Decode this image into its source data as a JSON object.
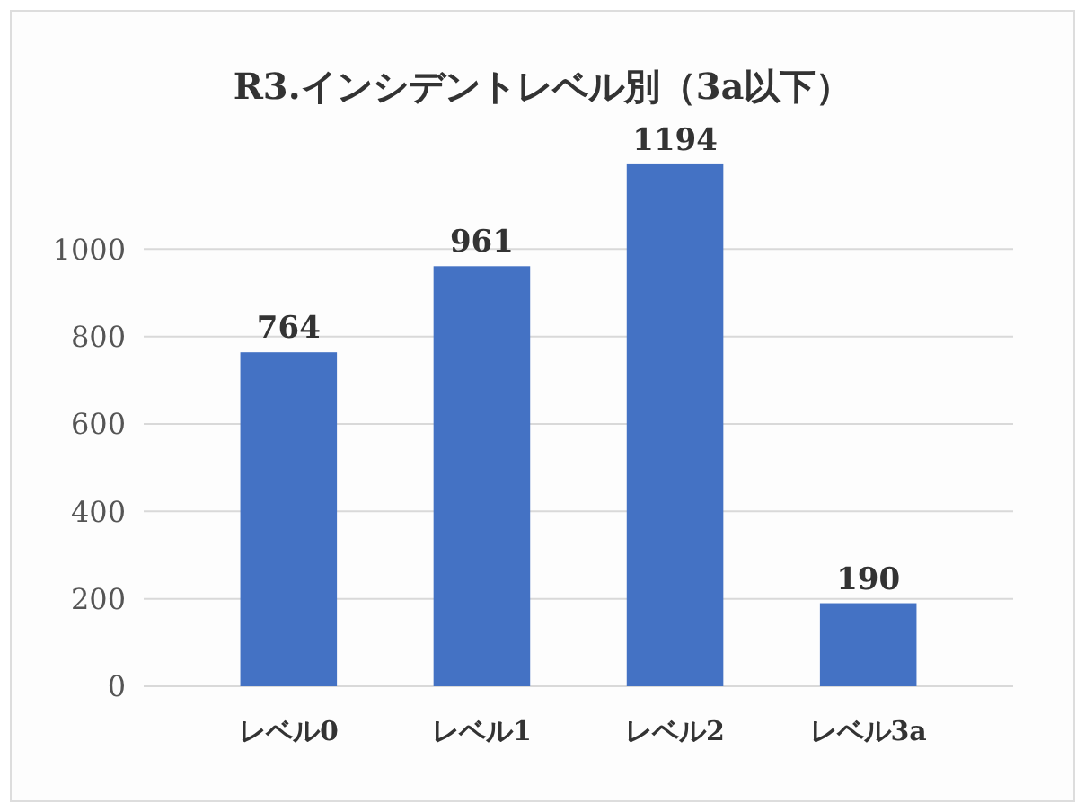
{
  "chart_data": {
    "type": "bar",
    "title": "R3.インシデントレベル別（3a以下）",
    "categories": [
      "レベル0",
      "レベル1",
      "レベル2",
      "レベル3a"
    ],
    "values": [
      764,
      961,
      1194,
      190
    ],
    "color": "#4472c4",
    "ylim": [
      0,
      1200
    ],
    "yticks": [
      0,
      200,
      400,
      600,
      800,
      1000
    ],
    "grid": "y",
    "data_labels": true
  }
}
